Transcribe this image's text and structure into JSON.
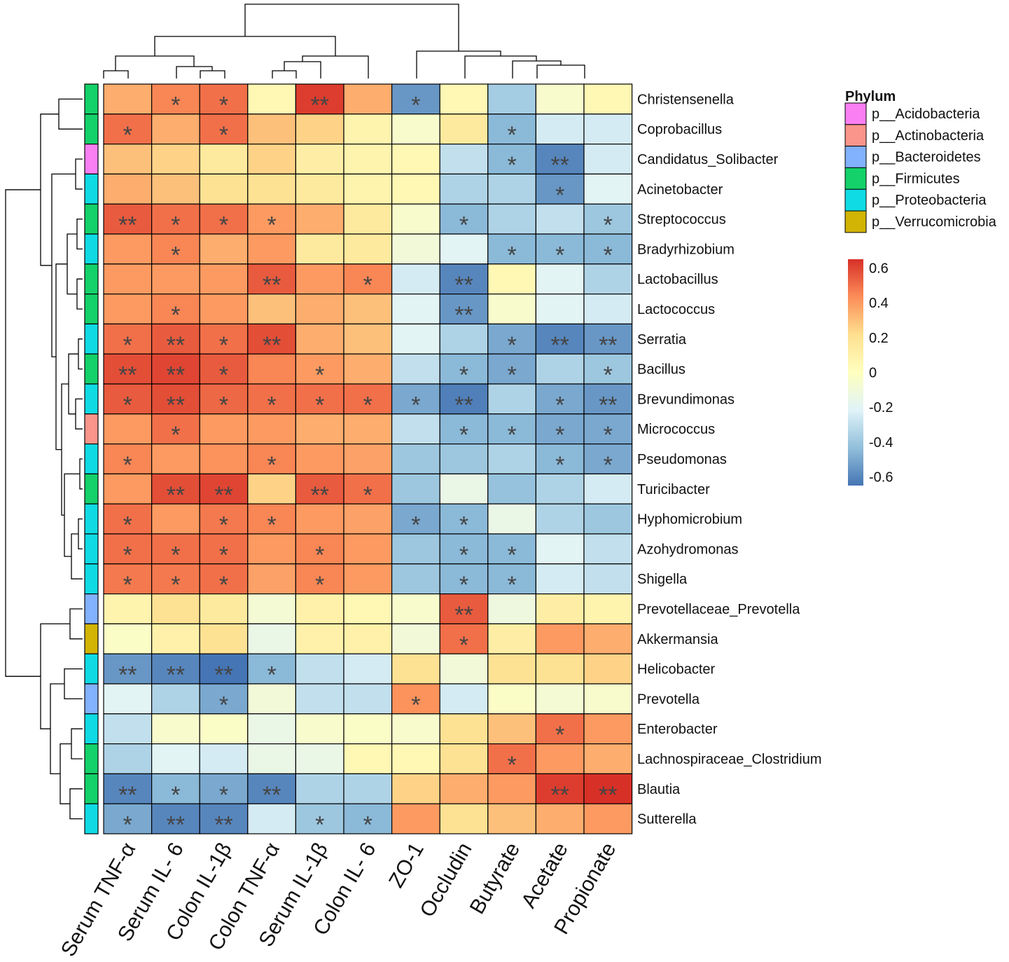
{
  "chart_data": {
    "type": "heatmap",
    "title": "",
    "columns": [
      "Serum TNF-α",
      "Serum IL- 6",
      "Colon IL-1β",
      "Colon TNF-α",
      "Serum IL-1β",
      "Colon IL- 6",
      "ZO-1",
      "Occludin",
      "Butyrate",
      "Acetate",
      "Propionate"
    ],
    "rows": [
      {
        "name": "Christensenella",
        "phylum": "p__Firmicutes",
        "values": [
          0.35,
          0.45,
          0.5,
          0.05,
          0.62,
          0.35,
          -0.55,
          0.05,
          -0.38,
          -0.05,
          0.05
        ],
        "sig": [
          "",
          "*",
          "*",
          "",
          "**",
          "",
          "*",
          "",
          "",
          "",
          ""
        ]
      },
      {
        "name": "Coprobacillus",
        "phylum": "p__Firmicutes",
        "values": [
          0.5,
          0.35,
          0.5,
          0.3,
          0.25,
          0.08,
          -0.05,
          0.15,
          -0.45,
          -0.25,
          -0.25
        ],
        "sig": [
          "*",
          "",
          "*",
          "",
          "",
          "",
          "",
          "",
          "*",
          "",
          ""
        ]
      },
      {
        "name": "Candidatus_Solibacter",
        "phylum": "p__Acidobacteria",
        "values": [
          0.3,
          0.25,
          0.15,
          0.25,
          0.12,
          0.08,
          0.05,
          -0.3,
          -0.45,
          -0.6,
          -0.25
        ],
        "sig": [
          "",
          "",
          "",
          "",
          "",
          "",
          "",
          "",
          "*",
          "**",
          ""
        ]
      },
      {
        "name": "Acinetobacter",
        "phylum": "p__Proteobacteria",
        "values": [
          0.35,
          0.3,
          0.2,
          0.2,
          0.15,
          0.08,
          0.05,
          -0.35,
          -0.35,
          -0.55,
          -0.2
        ],
        "sig": [
          "",
          "",
          "",
          "",
          "",
          "",
          "",
          "",
          "",
          "*",
          ""
        ]
      },
      {
        "name": "Streptococcus",
        "phylum": "p__Firmicutes",
        "values": [
          0.55,
          0.5,
          0.5,
          0.4,
          0.35,
          0.15,
          -0.05,
          -0.45,
          -0.35,
          -0.3,
          -0.4
        ],
        "sig": [
          "**",
          "*",
          "*",
          "*",
          "",
          "",
          "",
          "*",
          "",
          "",
          "*"
        ]
      },
      {
        "name": "Bradyrhizobium",
        "phylum": "p__Proteobacteria",
        "values": [
          0.4,
          0.45,
          0.35,
          0.4,
          0.15,
          0.15,
          -0.1,
          -0.2,
          -0.45,
          -0.45,
          -0.45
        ],
        "sig": [
          "",
          "*",
          "",
          "",
          "",
          "",
          "",
          "",
          "*",
          "*",
          "*"
        ]
      },
      {
        "name": "Lactobacillus",
        "phylum": "p__Firmicutes",
        "values": [
          0.4,
          0.4,
          0.4,
          0.55,
          0.4,
          0.45,
          -0.25,
          -0.6,
          0.05,
          -0.2,
          -0.35
        ],
        "sig": [
          "",
          "",
          "",
          "**",
          "",
          "*",
          "",
          "**",
          "",
          "",
          ""
        ]
      },
      {
        "name": "Lactococcus",
        "phylum": "p__Firmicutes",
        "values": [
          0.4,
          0.45,
          0.4,
          0.3,
          0.35,
          0.3,
          -0.2,
          -0.55,
          -0.05,
          -0.2,
          -0.25
        ],
        "sig": [
          "",
          "*",
          "",
          "",
          "",
          "",
          "",
          "**",
          "",
          "",
          ""
        ]
      },
      {
        "name": "Serratia",
        "phylum": "p__Proteobacteria",
        "values": [
          0.5,
          0.55,
          0.5,
          0.58,
          0.35,
          0.3,
          -0.2,
          -0.35,
          -0.5,
          -0.6,
          -0.55
        ],
        "sig": [
          "*",
          "**",
          "*",
          "**",
          "",
          "",
          "",
          "",
          "*",
          "**",
          "**"
        ]
      },
      {
        "name": "Bacillus",
        "phylum": "p__Firmicutes",
        "values": [
          0.58,
          0.6,
          0.55,
          0.45,
          0.4,
          0.35,
          -0.3,
          -0.45,
          -0.5,
          -0.35,
          -0.4
        ],
        "sig": [
          "**",
          "**",
          "*",
          "",
          "*",
          "",
          "",
          "*",
          "*",
          "",
          "*"
        ]
      },
      {
        "name": "Brevundimonas",
        "phylum": "p__Proteobacteria",
        "values": [
          0.55,
          0.58,
          0.52,
          0.5,
          0.5,
          0.5,
          -0.5,
          -0.62,
          -0.35,
          -0.5,
          -0.55
        ],
        "sig": [
          "*",
          "**",
          "*",
          "*",
          "*",
          "*",
          "*",
          "**",
          "",
          "*",
          "**"
        ]
      },
      {
        "name": "Micrococcus",
        "phylum": "p__Actinobacteria",
        "values": [
          0.4,
          0.5,
          0.4,
          0.4,
          0.35,
          0.35,
          -0.3,
          -0.45,
          -0.45,
          -0.5,
          -0.5
        ],
        "sig": [
          "",
          "*",
          "",
          "",
          "",
          "",
          "",
          "*",
          "*",
          "*",
          "*"
        ]
      },
      {
        "name": "Pseudomonas",
        "phylum": "p__Proteobacteria",
        "values": [
          0.45,
          0.4,
          0.42,
          0.45,
          0.4,
          0.38,
          -0.4,
          -0.4,
          -0.35,
          -0.45,
          -0.5
        ],
        "sig": [
          "*",
          "",
          "",
          "*",
          "",
          "",
          "",
          "",
          "",
          "*",
          "*"
        ]
      },
      {
        "name": "Turicibacter",
        "phylum": "p__Firmicutes",
        "values": [
          0.4,
          0.58,
          0.6,
          0.25,
          0.55,
          0.5,
          -0.4,
          -0.15,
          -0.42,
          -0.35,
          -0.25
        ],
        "sig": [
          "",
          "**",
          "**",
          "",
          "**",
          "*",
          "",
          "",
          "",
          "",
          ""
        ]
      },
      {
        "name": "Hyphomicrobium",
        "phylum": "p__Proteobacteria",
        "values": [
          0.5,
          0.4,
          0.48,
          0.45,
          0.4,
          0.38,
          -0.5,
          -0.45,
          -0.15,
          -0.35,
          -0.4
        ],
        "sig": [
          "*",
          "",
          "*",
          "*",
          "",
          "",
          "*",
          "*",
          "",
          "",
          ""
        ]
      },
      {
        "name": "Azohydromonas",
        "phylum": "p__Proteobacteria",
        "values": [
          0.5,
          0.5,
          0.5,
          0.4,
          0.45,
          0.4,
          -0.4,
          -0.45,
          -0.45,
          -0.2,
          -0.3
        ],
        "sig": [
          "*",
          "*",
          "*",
          "",
          "*",
          "",
          "",
          "*",
          "*",
          "",
          ""
        ]
      },
      {
        "name": "Shigella",
        "phylum": "p__Proteobacteria",
        "values": [
          0.48,
          0.48,
          0.5,
          0.38,
          0.45,
          0.4,
          -0.4,
          -0.45,
          -0.45,
          -0.25,
          -0.3
        ],
        "sig": [
          "*",
          "*",
          "*",
          "",
          "*",
          "",
          "",
          "*",
          "*",
          "",
          ""
        ]
      },
      {
        "name": "Prevotellaceae_Prevotella",
        "phylum": "p__Bacteroidetes",
        "values": [
          0.08,
          0.2,
          0.15,
          -0.08,
          0.1,
          0.05,
          -0.05,
          0.55,
          -0.12,
          0.12,
          0.08
        ],
        "sig": [
          "",
          "",
          "",
          "",
          "",
          "",
          "",
          "**",
          "",
          "",
          ""
        ]
      },
      {
        "name": "Akkermansia",
        "phylum": "p__Verrucomicrobia",
        "values": [
          -0.03,
          0.1,
          0.2,
          -0.15,
          0.1,
          0.1,
          -0.1,
          0.5,
          0.12,
          0.4,
          0.35
        ],
        "sig": [
          "",
          "",
          "",
          "",
          "",
          "",
          "",
          "*",
          "",
          "",
          ""
        ]
      },
      {
        "name": "Helicobacter",
        "phylum": "p__Proteobacteria",
        "values": [
          -0.55,
          -0.6,
          -0.65,
          -0.45,
          -0.3,
          -0.25,
          0.2,
          -0.1,
          0.2,
          0.2,
          0.25
        ],
        "sig": [
          "**",
          "**",
          "**",
          "*",
          "",
          "",
          "",
          "",
          "",
          "",
          ""
        ]
      },
      {
        "name": "Prevotella",
        "phylum": "p__Bacteroidetes",
        "values": [
          -0.2,
          -0.35,
          -0.5,
          -0.1,
          -0.3,
          -0.3,
          0.42,
          -0.25,
          -0.03,
          -0.08,
          -0.05
        ],
        "sig": [
          "",
          "",
          "*",
          "",
          "",
          "",
          "*",
          "",
          "",
          "",
          ""
        ]
      },
      {
        "name": "Enterobacter",
        "phylum": "p__Proteobacteria",
        "values": [
          -0.3,
          -0.05,
          -0.03,
          -0.15,
          -0.05,
          -0.03,
          -0.05,
          0.2,
          0.3,
          0.5,
          0.4
        ],
        "sig": [
          "",
          "",
          "",
          "",
          "",
          "",
          "",
          "",
          "",
          "*",
          ""
        ]
      },
      {
        "name": "Lachnospiraceae_Clostridium",
        "phylum": "p__Firmicutes",
        "values": [
          -0.35,
          -0.2,
          -0.25,
          -0.15,
          -0.15,
          0.05,
          0.05,
          0.2,
          0.5,
          0.4,
          0.35
        ],
        "sig": [
          "",
          "",
          "",
          "",
          "",
          "",
          "",
          "",
          "*",
          "",
          ""
        ]
      },
      {
        "name": "Blautia",
        "phylum": "p__Firmicutes",
        "values": [
          -0.6,
          -0.45,
          -0.5,
          -0.6,
          -0.35,
          -0.35,
          0.25,
          0.35,
          0.4,
          0.62,
          0.65
        ],
        "sig": [
          "**",
          "*",
          "*",
          "**",
          "",
          "",
          "",
          "",
          "",
          "**",
          "**"
        ]
      },
      {
        "name": "Sutterella",
        "phylum": "p__Proteobacteria",
        "values": [
          -0.5,
          -0.6,
          -0.6,
          -0.25,
          -0.4,
          -0.45,
          0.4,
          0.2,
          0.3,
          0.35,
          0.4
        ],
        "sig": [
          "*",
          "**",
          "**",
          "",
          "*",
          "*",
          "",
          "",
          "",
          "",
          ""
        ]
      }
    ],
    "value_range": [
      -0.65,
      0.65
    ],
    "colorbar": {
      "ticks": [
        "0.6",
        "0.4",
        "0.2",
        "0",
        "-0.2",
        "-0.4",
        "-0.6"
      ],
      "tick_values": [
        0.6,
        0.4,
        0.2,
        0,
        -0.2,
        -0.4,
        -0.6
      ],
      "colors": [
        "#4575b4",
        "#91bfdb",
        "#e0f3f8",
        "#ffffbf",
        "#fee090",
        "#fc8d59",
        "#d73027"
      ]
    },
    "legend": {
      "title": "Phylum",
      "items": [
        {
          "label": "p__Acidobacteria",
          "color": "#f97ff2"
        },
        {
          "label": "p__Actinobacteria",
          "color": "#f9958a"
        },
        {
          "label": "p__Bacteroidetes",
          "color": "#82b1fd"
        },
        {
          "label": "p__Firmicutes",
          "color": "#14d16a"
        },
        {
          "label": "p__Proteobacteria",
          "color": "#0fdbe4"
        },
        {
          "label": "p__Verrucomicrobia",
          "color": "#d1b404"
        }
      ]
    }
  }
}
